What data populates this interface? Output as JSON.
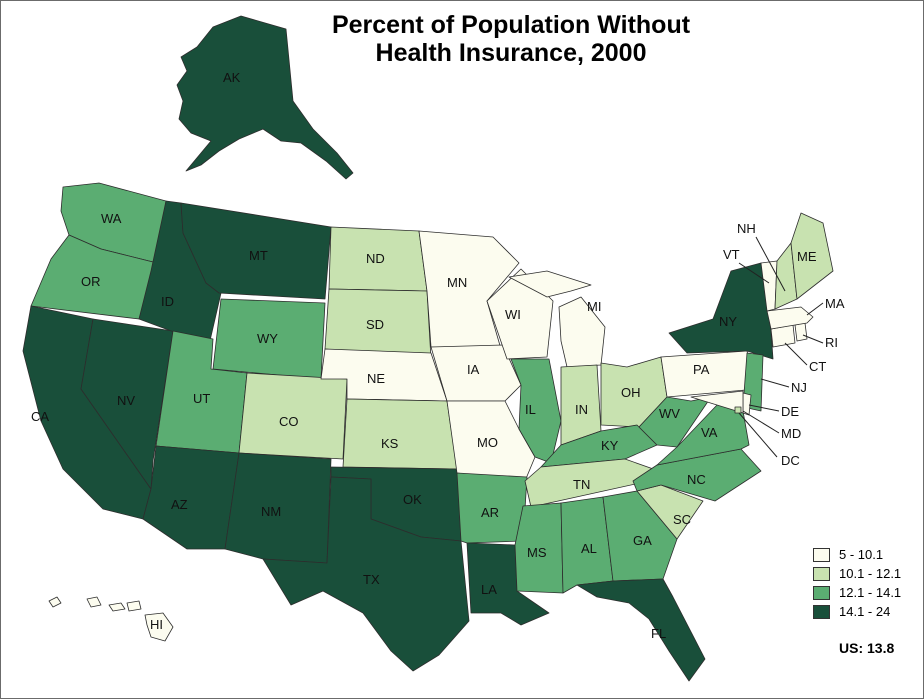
{
  "title_lines": [
    "Percent of Population Without",
    "Health Insurance, 2000"
  ],
  "colors": {
    "band1": "#fcfcef",
    "band2": "#c8e2b0",
    "band3": "#5bad72",
    "band4": "#194f3a"
  },
  "legend": [
    {
      "label": "5 - 10.1",
      "band": "band1"
    },
    {
      "label": "10.1 - 12.1",
      "band": "band2"
    },
    {
      "label": "12.1 - 14.1",
      "band": "band3"
    },
    {
      "label": "14.1 - 24",
      "band": "band4"
    }
  ],
  "us_summary": "US: 13.8",
  "states": [
    {
      "abbr": "WA",
      "band": "band3"
    },
    {
      "abbr": "OR",
      "band": "band3"
    },
    {
      "abbr": "CA",
      "band": "band4"
    },
    {
      "abbr": "NV",
      "band": "band4"
    },
    {
      "abbr": "ID",
      "band": "band4"
    },
    {
      "abbr": "MT",
      "band": "band4"
    },
    {
      "abbr": "WY",
      "band": "band3"
    },
    {
      "abbr": "UT",
      "band": "band3"
    },
    {
      "abbr": "AZ",
      "band": "band4"
    },
    {
      "abbr": "CO",
      "band": "band2"
    },
    {
      "abbr": "NM",
      "band": "band4"
    },
    {
      "abbr": "ND",
      "band": "band2"
    },
    {
      "abbr": "SD",
      "band": "band2"
    },
    {
      "abbr": "NE",
      "band": "band1"
    },
    {
      "abbr": "KS",
      "band": "band2"
    },
    {
      "abbr": "OK",
      "band": "band4"
    },
    {
      "abbr": "TX",
      "band": "band4"
    },
    {
      "abbr": "MN",
      "band": "band1"
    },
    {
      "abbr": "IA",
      "band": "band1"
    },
    {
      "abbr": "MO",
      "band": "band1"
    },
    {
      "abbr": "AR",
      "band": "band3"
    },
    {
      "abbr": "LA",
      "band": "band4"
    },
    {
      "abbr": "WI",
      "band": "band1"
    },
    {
      "abbr": "IL",
      "band": "band3"
    },
    {
      "abbr": "MI",
      "band": "band1"
    },
    {
      "abbr": "IN",
      "band": "band2"
    },
    {
      "abbr": "OH",
      "band": "band2"
    },
    {
      "abbr": "KY",
      "band": "band3"
    },
    {
      "abbr": "TN",
      "band": "band2"
    },
    {
      "abbr": "MS",
      "band": "band3"
    },
    {
      "abbr": "AL",
      "band": "band3"
    },
    {
      "abbr": "GA",
      "band": "band3"
    },
    {
      "abbr": "FL",
      "band": "band4"
    },
    {
      "abbr": "SC",
      "band": "band2"
    },
    {
      "abbr": "NC",
      "band": "band3"
    },
    {
      "abbr": "VA",
      "band": "band3"
    },
    {
      "abbr": "WV",
      "band": "band3"
    },
    {
      "abbr": "PA",
      "band": "band1"
    },
    {
      "abbr": "NY",
      "band": "band4"
    },
    {
      "abbr": "NJ",
      "band": "band3"
    },
    {
      "abbr": "DE",
      "band": "band1"
    },
    {
      "abbr": "MD",
      "band": "band1"
    },
    {
      "abbr": "DC",
      "band": "band2"
    },
    {
      "abbr": "CT",
      "band": "band1"
    },
    {
      "abbr": "RI",
      "band": "band1"
    },
    {
      "abbr": "MA",
      "band": "band1"
    },
    {
      "abbr": "VT",
      "band": "band1"
    },
    {
      "abbr": "NH",
      "band": "band2"
    },
    {
      "abbr": "ME",
      "band": "band2"
    },
    {
      "abbr": "AK",
      "band": "band4"
    },
    {
      "abbr": "HI",
      "band": "band1"
    }
  ]
}
